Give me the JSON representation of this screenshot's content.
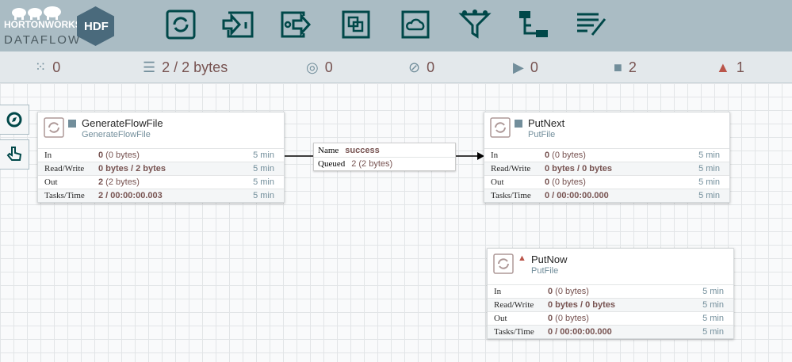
{
  "header": {
    "brand": "HORTONWORKS",
    "product": "DATAFLOW",
    "badge": "HDF",
    "toolbar": [
      "processor",
      "input-port",
      "output-port",
      "process-group",
      "remote-process-group",
      "funnel",
      "template",
      "label"
    ]
  },
  "status": {
    "transmitting": "0",
    "queued": "2 / 2 bytes",
    "transmitting_remote": "0",
    "not_transmitting_remote": "0",
    "running": "0",
    "stopped": "2",
    "invalid": "1"
  },
  "colors": {
    "header": "#aabcc4",
    "accent": "#004849",
    "value": "#775351",
    "warning": "#ba554a"
  },
  "processors": [
    {
      "name": "GenerateFlowFile",
      "type": "GenerateFlowFile",
      "state": "stopped",
      "rows": [
        {
          "label": "In",
          "strong": "0",
          "rest": " (0 bytes)",
          "time": "5 min"
        },
        {
          "label": "Read/Write",
          "strong": "0 bytes / 2 bytes",
          "rest": "",
          "time": "5 min"
        },
        {
          "label": "Out",
          "strong": "2",
          "rest": " (2 bytes)",
          "time": "5 min"
        },
        {
          "label": "Tasks/Time",
          "strong": "2 / 00:00:00.003",
          "rest": "",
          "time": "5 min"
        }
      ]
    },
    {
      "name": "PutNext",
      "type": "PutFile",
      "state": "stopped",
      "rows": [
        {
          "label": "In",
          "strong": "0",
          "rest": " (0 bytes)",
          "time": "5 min"
        },
        {
          "label": "Read/Write",
          "strong": "0 bytes / 0 bytes",
          "rest": "",
          "time": "5 min"
        },
        {
          "label": "Out",
          "strong": "0",
          "rest": " (0 bytes)",
          "time": "5 min"
        },
        {
          "label": "Tasks/Time",
          "strong": "0 / 00:00:00.000",
          "rest": "",
          "time": "5 min"
        }
      ]
    },
    {
      "name": "PutNow",
      "type": "PutFile",
      "state": "invalid",
      "rows": [
        {
          "label": "In",
          "strong": "0",
          "rest": " (0 bytes)",
          "time": "5 min"
        },
        {
          "label": "Read/Write",
          "strong": "0 bytes / 0 bytes",
          "rest": "",
          "time": "5 min"
        },
        {
          "label": "Out",
          "strong": "0",
          "rest": " (0 bytes)",
          "time": "5 min"
        },
        {
          "label": "Tasks/Time",
          "strong": "0 / 00:00:00.000",
          "rest": "",
          "time": "5 min"
        }
      ]
    }
  ],
  "connection": {
    "name_label": "Name",
    "name": "success",
    "queued_label": "Queued",
    "queued": "2 (2 bytes)"
  }
}
